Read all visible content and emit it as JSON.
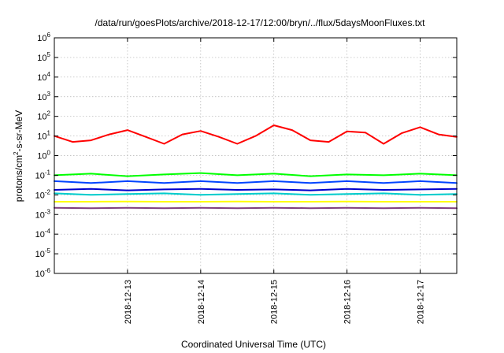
{
  "chart_data": {
    "type": "line",
    "title": "/data/run/goesPlots/archive/2018-12-17/12:00/bryn/../flux/5daysMoonFluxes.txt",
    "xlabel": "Coordinated Universal Time (UTC)",
    "ylabel": {
      "base": "protons/cm",
      "sup": "2",
      "rest": "-s-sr-MeV"
    },
    "yscale": "log",
    "ylim": [
      1e-06,
      1000000.0
    ],
    "xlim": [
      "2018-12-12T00:00",
      "2018-12-17T12:00"
    ],
    "x_ticks": [
      "2018-12-13",
      "2018-12-14",
      "2018-12-15",
      "2018-12-16",
      "2018-12-17"
    ],
    "y_ticks": [
      {
        "value": 1e-06,
        "base": "10",
        "exp": "-6"
      },
      {
        "value": 1e-05,
        "base": "10",
        "exp": "-5"
      },
      {
        "value": 0.0001,
        "base": "10",
        "exp": "-4"
      },
      {
        "value": 0.001,
        "base": "10",
        "exp": "-3"
      },
      {
        "value": 0.01,
        "base": "10",
        "exp": "-2"
      },
      {
        "value": 0.1,
        "base": "10",
        "exp": "-1"
      },
      {
        "value": 1,
        "base": "10",
        "exp": "0"
      },
      {
        "value": 10,
        "base": "10",
        "exp": "1"
      },
      {
        "value": 100,
        "base": "10",
        "exp": "2"
      },
      {
        "value": 1000,
        "base": "10",
        "exp": "3"
      },
      {
        "value": 10000,
        "base": "10",
        "exp": "4"
      },
      {
        "value": 100000,
        "base": "10",
        "exp": "5"
      },
      {
        "value": 1000000,
        "base": "10",
        "exp": "6"
      }
    ],
    "grid": true,
    "legend": "none",
    "series": [
      {
        "color": "#ff0000",
        "x": [
          "2018-12-12T00:00",
          "2018-12-12T06:00",
          "2018-12-12T12:00",
          "2018-12-12T18:00",
          "2018-12-13T00:00",
          "2018-12-13T06:00",
          "2018-12-13T12:00",
          "2018-12-13T18:00",
          "2018-12-14T00:00",
          "2018-12-14T06:00",
          "2018-12-14T12:00",
          "2018-12-14T18:00",
          "2018-12-15T00:00",
          "2018-12-15T06:00",
          "2018-12-15T12:00",
          "2018-12-15T18:00",
          "2018-12-16T00:00",
          "2018-12-16T06:00",
          "2018-12-16T12:00",
          "2018-12-16T18:00",
          "2018-12-17T00:00",
          "2018-12-17T06:00",
          "2018-12-17T12:00"
        ],
        "y": [
          10,
          5,
          6,
          12,
          20,
          9,
          4,
          12,
          18,
          9,
          4,
          10,
          35,
          20,
          6,
          5,
          17,
          15,
          4,
          14,
          28,
          12,
          9
        ]
      },
      {
        "color": "#00ff00",
        "x": [
          "2018-12-12T00:00",
          "2018-12-12T12:00",
          "2018-12-13T00:00",
          "2018-12-13T12:00",
          "2018-12-14T00:00",
          "2018-12-14T12:00",
          "2018-12-15T00:00",
          "2018-12-15T12:00",
          "2018-12-16T00:00",
          "2018-12-16T12:00",
          "2018-12-17T00:00",
          "2018-12-17T12:00"
        ],
        "y": [
          0.1,
          0.12,
          0.09,
          0.11,
          0.13,
          0.1,
          0.12,
          0.09,
          0.11,
          0.1,
          0.12,
          0.1
        ]
      },
      {
        "color": "#0044ff",
        "x": [
          "2018-12-12T00:00",
          "2018-12-12T12:00",
          "2018-12-13T00:00",
          "2018-12-13T12:00",
          "2018-12-14T00:00",
          "2018-12-14T12:00",
          "2018-12-15T00:00",
          "2018-12-15T12:00",
          "2018-12-16T00:00",
          "2018-12-16T12:00",
          "2018-12-17T00:00",
          "2018-12-17T12:00"
        ],
        "y": [
          0.05,
          0.04,
          0.05,
          0.04,
          0.05,
          0.04,
          0.05,
          0.04,
          0.05,
          0.04,
          0.05,
          0.04
        ]
      },
      {
        "color": "#00cccc",
        "x": [
          "2018-12-12T00:00",
          "2018-12-12T12:00",
          "2018-12-13T00:00",
          "2018-12-13T12:00",
          "2018-12-14T00:00",
          "2018-12-14T12:00",
          "2018-12-15T00:00",
          "2018-12-15T12:00",
          "2018-12-16T00:00",
          "2018-12-16T12:00",
          "2018-12-17T00:00",
          "2018-12-17T12:00"
        ],
        "y": [
          0.012,
          0.01,
          0.011,
          0.012,
          0.01,
          0.011,
          0.012,
          0.01,
          0.011,
          0.012,
          0.01,
          0.011
        ]
      },
      {
        "color": "#0000cc",
        "x": [
          "2018-12-12T00:00",
          "2018-12-12T12:00",
          "2018-12-13T00:00",
          "2018-12-13T12:00",
          "2018-12-14T00:00",
          "2018-12-14T12:00",
          "2018-12-15T00:00",
          "2018-12-15T12:00",
          "2018-12-16T00:00",
          "2018-12-16T12:00",
          "2018-12-17T00:00",
          "2018-12-17T12:00"
        ],
        "y": [
          0.018,
          0.02,
          0.017,
          0.019,
          0.02,
          0.018,
          0.019,
          0.017,
          0.02,
          0.018,
          0.019,
          0.02
        ]
      },
      {
        "color": "#ffff00",
        "x": [
          "2018-12-12T00:00",
          "2018-12-12T12:00",
          "2018-12-13T00:00",
          "2018-12-13T12:00",
          "2018-12-14T00:00",
          "2018-12-14T12:00",
          "2018-12-15T00:00",
          "2018-12-15T12:00",
          "2018-12-16T00:00",
          "2018-12-16T12:00",
          "2018-12-17T00:00",
          "2018-12-17T12:00"
        ],
        "y": [
          0.0045,
          0.0045,
          0.0046,
          0.0045,
          0.0045,
          0.0046,
          0.0045,
          0.0045,
          0.0046,
          0.0045,
          0.0045,
          0.0045
        ]
      },
      {
        "color": "#7f3f7f",
        "x": [
          "2018-12-12T00:00",
          "2018-12-12T12:00",
          "2018-12-13T00:00",
          "2018-12-13T12:00",
          "2018-12-14T00:00",
          "2018-12-14T12:00",
          "2018-12-15T00:00",
          "2018-12-15T12:00",
          "2018-12-16T00:00",
          "2018-12-16T12:00",
          "2018-12-17T00:00",
          "2018-12-17T12:00"
        ],
        "y": [
          0.0022,
          0.0021,
          0.0022,
          0.0021,
          0.0022,
          0.0021,
          0.0022,
          0.0021,
          0.0022,
          0.0021,
          0.0022,
          0.0021
        ]
      }
    ]
  }
}
